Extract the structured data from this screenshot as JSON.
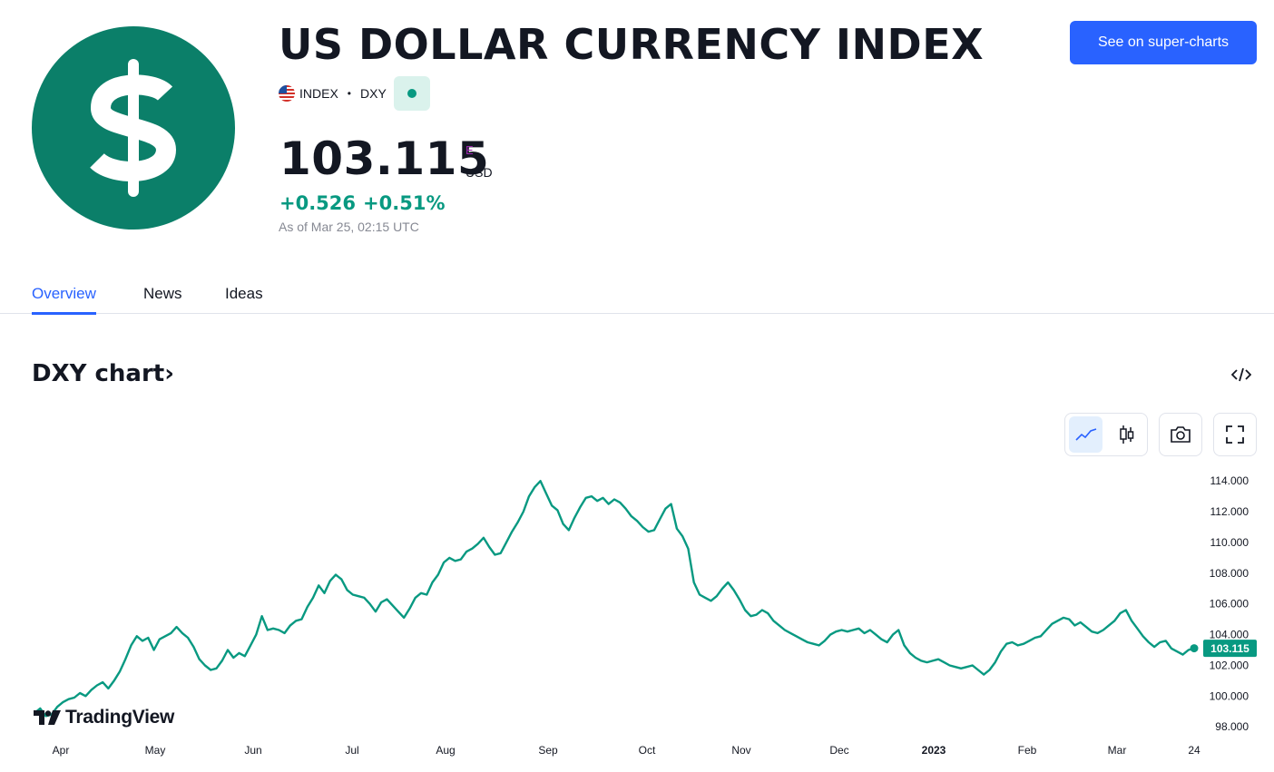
{
  "header": {
    "title": "US DOLLAR CURRENCY INDEX",
    "super_charts_label": "See on super-charts",
    "symbol_type": "INDEX",
    "symbol": "DXY",
    "price": "103.115",
    "price_flag": "E",
    "currency": "USD",
    "change_abs": "+0.526",
    "change_pct": "+0.51%",
    "as_of": "As of Mar 25, 02:15 UTC"
  },
  "colors": {
    "brand_green": "#0b7f69",
    "line": "#089981",
    "accent_blue": "#2962ff"
  },
  "tabs": [
    {
      "label": "Overview",
      "active": true
    },
    {
      "label": "News",
      "active": false
    },
    {
      "label": "Ideas",
      "active": false
    }
  ],
  "chart_section": {
    "heading": "DXY chart",
    "heading_arrow": "›",
    "watermark": "TradingView",
    "price_label": "103.115"
  },
  "chart_data": {
    "type": "line",
    "y_ticks": [
      "114.000",
      "112.000",
      "110.000",
      "108.000",
      "106.000",
      "104.000",
      "102.000",
      "100.000",
      "98.000"
    ],
    "x_ticks": [
      "Apr",
      "May",
      "Jun",
      "Jul",
      "Aug",
      "Sep",
      "Oct",
      "Nov",
      "Dec",
      "2023",
      "Feb",
      "Mar",
      "24"
    ],
    "ylim": [
      97.6,
      114.6
    ],
    "series": [
      {
        "values": [
          98.9,
          99.2,
          98.7,
          98.8,
          99.3,
          99.6,
          99.8,
          99.9,
          100.2,
          100.0,
          100.4,
          100.7,
          100.9,
          100.5,
          101.0,
          101.6,
          102.4,
          103.3,
          103.9,
          103.6,
          103.8,
          103.0,
          103.7,
          103.9,
          104.1,
          104.5,
          104.1,
          103.8,
          103.2,
          102.4,
          102.0,
          101.7,
          101.8,
          102.3,
          103.0,
          102.5,
          102.8,
          102.6,
          103.3,
          104.0,
          105.2,
          104.3,
          104.4,
          104.3,
          104.1,
          104.6,
          104.9,
          105.0,
          105.8,
          106.4,
          107.2,
          106.7,
          107.5,
          107.9,
          107.6,
          106.9,
          106.6,
          106.5,
          106.4,
          106.0,
          105.5,
          106.1,
          106.3,
          105.9,
          105.5,
          105.1,
          105.7,
          106.4,
          106.7,
          106.6,
          107.4,
          107.9,
          108.7,
          109.0,
          108.8,
          108.9,
          109.4,
          109.6,
          109.9,
          110.3,
          109.7,
          109.2,
          109.3,
          110.0,
          110.7,
          111.3,
          112.0,
          113.0,
          113.6,
          114.0,
          113.2,
          112.4,
          112.1,
          111.2,
          110.8,
          111.6,
          112.3,
          112.9,
          113.0,
          112.7,
          112.9,
          112.5,
          112.8,
          112.6,
          112.2,
          111.7,
          111.4,
          111.0,
          110.7,
          110.8,
          111.5,
          112.2,
          112.5,
          110.9,
          110.4,
          109.6,
          107.4,
          106.6,
          106.4,
          106.2,
          106.5,
          107.0,
          107.4,
          106.9,
          106.3,
          105.6,
          105.2,
          105.3,
          105.6,
          105.4,
          104.9,
          104.6,
          104.3,
          104.1,
          103.9,
          103.7,
          103.5,
          103.4,
          103.3,
          103.6,
          104.0,
          104.2,
          104.3,
          104.2,
          104.3,
          104.4,
          104.1,
          104.3,
          104.0,
          103.7,
          103.5,
          104.0,
          104.3,
          103.3,
          102.8,
          102.5,
          102.3,
          102.2,
          102.3,
          102.4,
          102.2,
          102.0,
          101.9,
          101.8,
          101.9,
          102.0,
          101.7,
          101.4,
          101.7,
          102.2,
          102.9,
          103.4,
          103.5,
          103.3,
          103.4,
          103.6,
          103.8,
          103.9,
          104.3,
          104.7,
          104.9,
          105.1,
          105.0,
          104.6,
          104.8,
          104.5,
          104.2,
          104.1,
          104.3,
          104.6,
          104.9,
          105.4,
          105.6,
          104.9,
          104.4,
          103.9,
          103.5,
          103.2,
          103.5,
          103.6,
          103.1,
          102.9,
          102.7,
          103.0,
          103.115
        ]
      }
    ]
  }
}
